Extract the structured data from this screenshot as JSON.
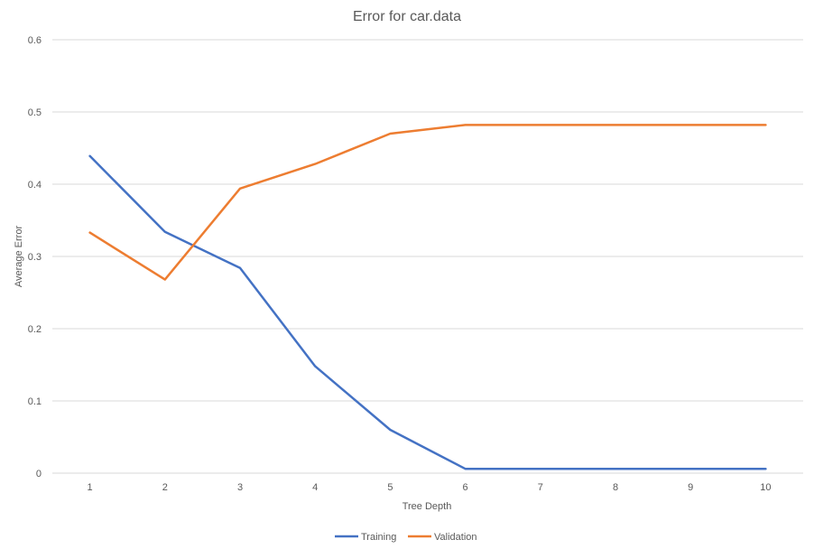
{
  "chart_data": {
    "type": "line",
    "title": "Error for car.data",
    "xlabel": "Tree Depth",
    "ylabel": "Average Error",
    "categories": [
      "1",
      "2",
      "3",
      "4",
      "5",
      "6",
      "7",
      "8",
      "9",
      "10"
    ],
    "ylim": [
      0,
      0.6
    ],
    "yticks": [
      "0",
      "0.1",
      "0.2",
      "0.3",
      "0.4",
      "0.5",
      "0.6"
    ],
    "grid": true,
    "legend_position": "bottom",
    "series": [
      {
        "name": "Training",
        "color": "#4472c4",
        "values": [
          0.439,
          0.334,
          0.284,
          0.148,
          0.06,
          0.006,
          0.006,
          0.006,
          0.006,
          0.006
        ]
      },
      {
        "name": "Validation",
        "color": "#ed7d31",
        "values": [
          0.333,
          0.268,
          0.394,
          0.428,
          0.47,
          0.482,
          0.482,
          0.482,
          0.482,
          0.482
        ]
      }
    ]
  }
}
